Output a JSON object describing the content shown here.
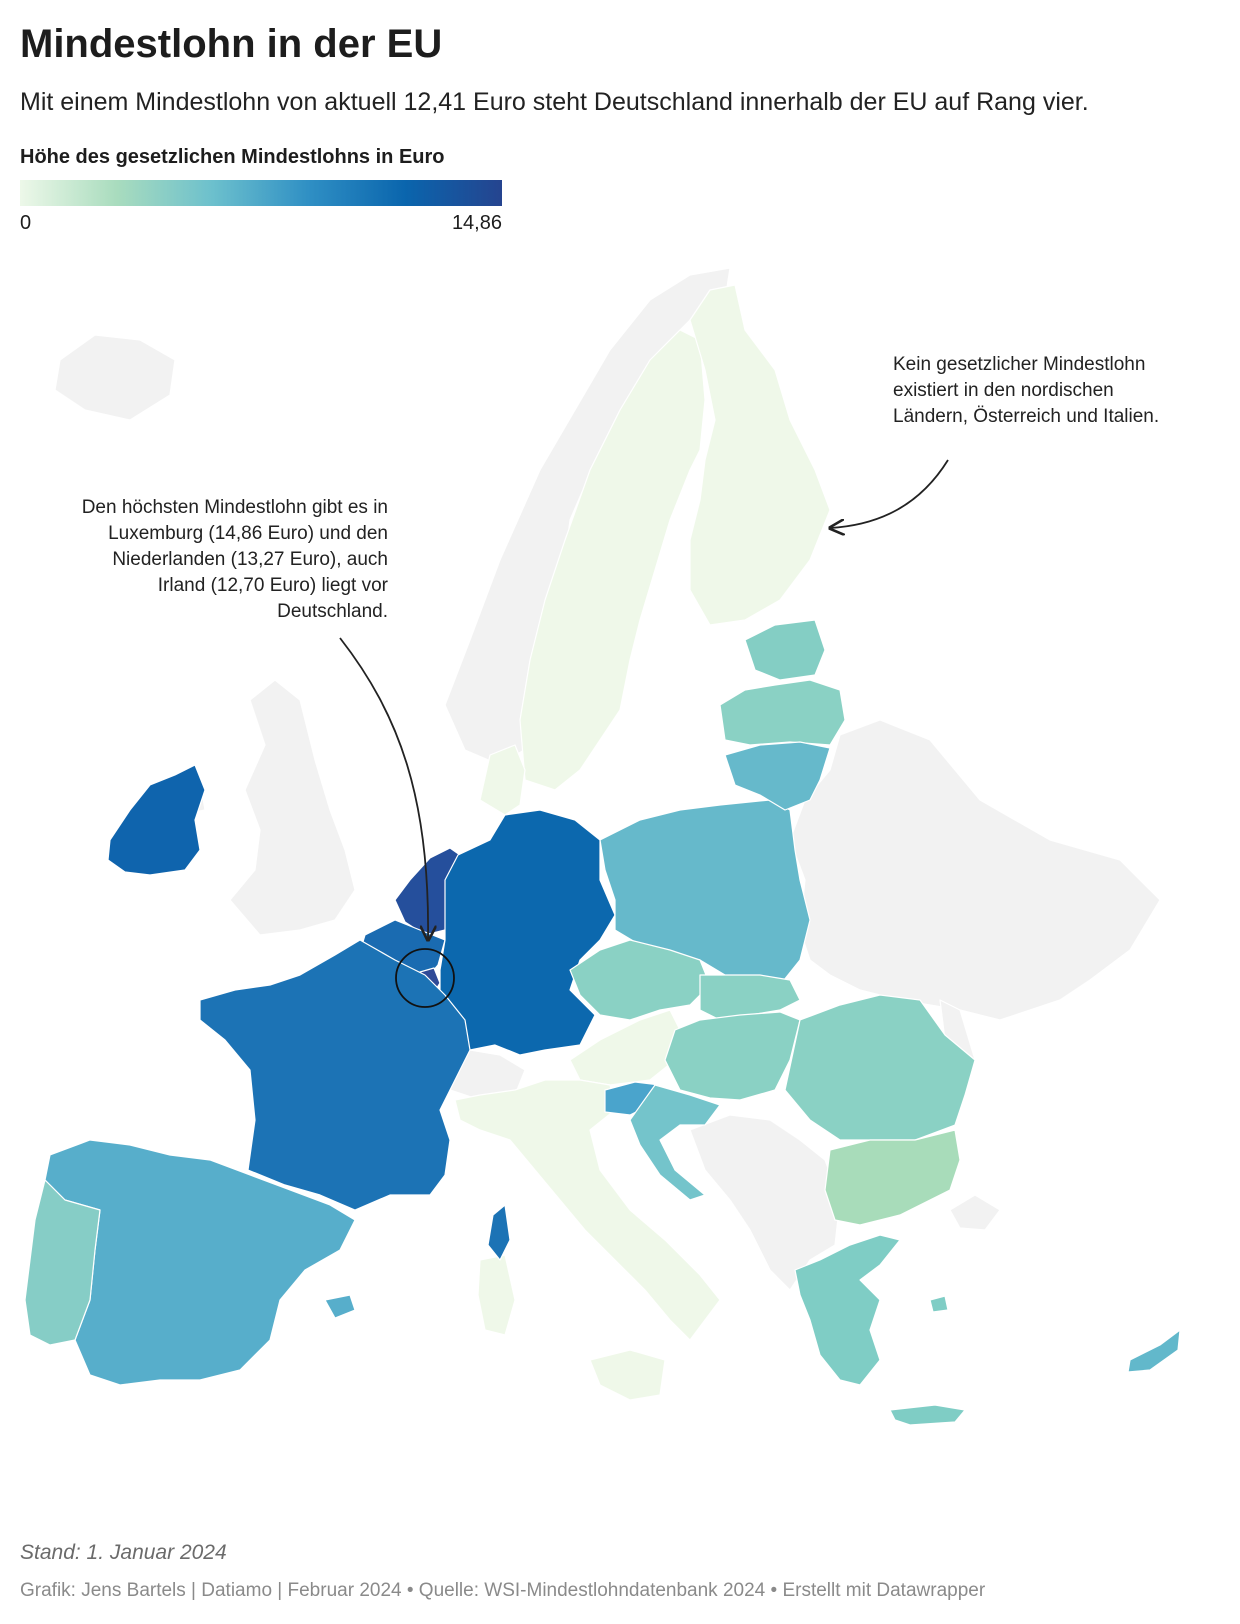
{
  "header": {
    "title": "Mindestlohn in der EU",
    "subtitle": "Mit einem Mindestlohn von aktuell 12,41 Euro steht Deutschland innerhalb der EU auf Rang vier."
  },
  "legend": {
    "title": "Höhe des gesetzlichen Mindestlohns in Euro",
    "min_label": "0",
    "max_label": "14,86",
    "colors": [
      "#edf8e9",
      "#a9dcbe",
      "#6cc0cd",
      "#2f8fc4",
      "#0a65ad",
      "#25448f"
    ]
  },
  "annotations": {
    "nordic": "Kein gesetzlicher Mindestlohn existiert in den nordischen Ländern, Österreich und Italien.",
    "highest": "Den höchsten Mindestlohn gibt es in Luxemburg (14,86 Euro) und den Niederlanden (13,27 Euro), auch Irland (12,70 Euro) liegt vor Deutschland."
  },
  "colors": {
    "non_eu": "#f2f2f2",
    "no_minimum_wage": "#eff8e9",
    "luxembourg": "#2f4a97",
    "netherlands": "#254f9c",
    "ireland": "#0f64ad",
    "germany": "#0c68ae",
    "france": "#1c73b5",
    "belgium": "#1a6bb1",
    "spain": "#57aecb",
    "portugal": "#86cdc6",
    "poland": "#66b9cb",
    "baltics": "#84cec4",
    "central_east": "#8ad1c4",
    "bulgaria": "#a8dcba",
    "greece": "#7fcdc5",
    "slovenia": "#4aa4cc",
    "croatia": "#74c4cb",
    "cyprus": "#62b8cb"
  },
  "footer": {
    "stand": "Stand: 1. Januar 2024",
    "credit": "Grafik: Jens Bartels | Datiamo | Februar 2024 • Quelle: WSI-Mindestlohndatenbank 2024 • Erstellt mit Datawrapper"
  }
}
